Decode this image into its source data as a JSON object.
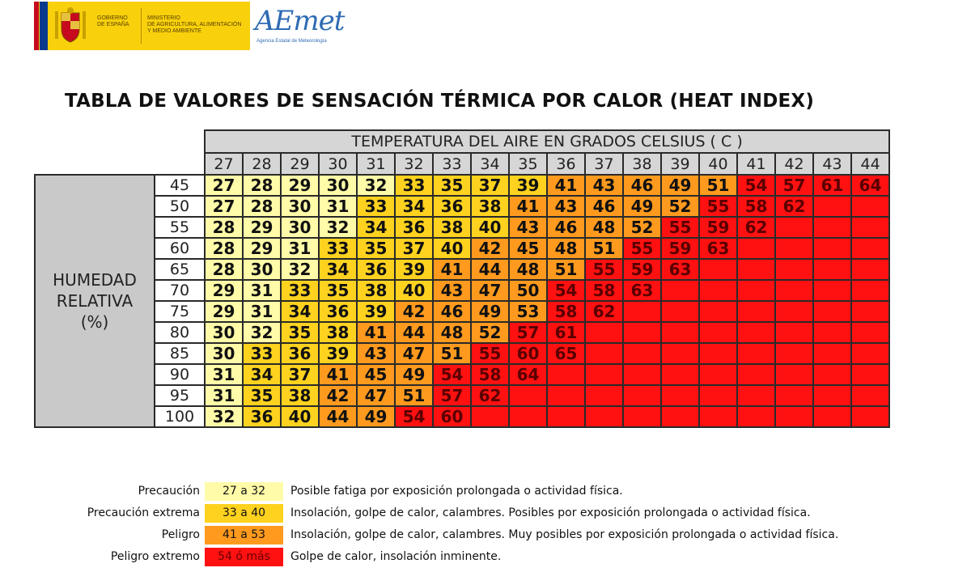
{
  "header": {
    "gov_line1": "GOBIERNO\nDE ESPAÑA",
    "gov_line2": "MINISTERIO\nDE AGRICULTURA, ALIMENTACIÓN\nY MEDIO AMBIENTE",
    "aemet_logo": "AEmet",
    "aemet_subtitle": "Agencia Estatal de Meteorología"
  },
  "title": "TABLA DE VALORES DE SENSACIÓN TÉRMICA POR CALOR (HEAT INDEX)",
  "table": {
    "temperature_title": "TEMPERATURA DEL AIRE EN GRADOS CELSIUS ( C )",
    "humidity_label": "HUMEDAD RELATIVA (%)",
    "temperatures": [
      "27",
      "28",
      "29",
      "30",
      "31",
      "32",
      "33",
      "34",
      "35",
      "36",
      "37",
      "38",
      "39",
      "40",
      "41",
      "42",
      "43",
      "44"
    ],
    "rows": [
      {
        "humidity": "45",
        "values": [
          "27",
          "28",
          "29",
          "30",
          "32",
          "33",
          "35",
          "37",
          "39",
          "41",
          "43",
          "46",
          "49",
          "51",
          "54",
          "57",
          "61",
          "64"
        ]
      },
      {
        "humidity": "50",
        "values": [
          "27",
          "28",
          "30",
          "31",
          "33",
          "34",
          "36",
          "38",
          "41",
          "43",
          "46",
          "49",
          "52",
          "55",
          "58",
          "62",
          "",
          ""
        ]
      },
      {
        "humidity": "55",
        "values": [
          "28",
          "29",
          "30",
          "32",
          "34",
          "36",
          "38",
          "40",
          "43",
          "46",
          "48",
          "52",
          "55",
          "59",
          "62",
          "",
          "",
          ""
        ]
      },
      {
        "humidity": "60",
        "values": [
          "28",
          "29",
          "31",
          "33",
          "35",
          "37",
          "40",
          "42",
          "45",
          "48",
          "51",
          "55",
          "59",
          "63",
          "",
          "",
          "",
          ""
        ]
      },
      {
        "humidity": "65",
        "values": [
          "28",
          "30",
          "32",
          "34",
          "36",
          "39",
          "41",
          "44",
          "48",
          "51",
          "55",
          "59",
          "63",
          "",
          "",
          "",
          "",
          ""
        ]
      },
      {
        "humidity": "70",
        "values": [
          "29",
          "31",
          "33",
          "35",
          "38",
          "40",
          "43",
          "47",
          "50",
          "54",
          "58",
          "63",
          "",
          "",
          "",
          "",
          "",
          ""
        ]
      },
      {
        "humidity": "75",
        "values": [
          "29",
          "31",
          "34",
          "36",
          "39",
          "42",
          "46",
          "49",
          "53",
          "58",
          "62",
          "",
          "",
          "",
          "",
          "",
          "",
          ""
        ]
      },
      {
        "humidity": "80",
        "values": [
          "30",
          "32",
          "35",
          "38",
          "41",
          "44",
          "48",
          "52",
          "57",
          "61",
          "",
          "",
          "",
          "",
          "",
          "",
          "",
          ""
        ]
      },
      {
        "humidity": "85",
        "values": [
          "30",
          "33",
          "36",
          "39",
          "43",
          "47",
          "51",
          "55",
          "60",
          "65",
          "",
          "",
          "",
          "",
          "",
          "",
          "",
          ""
        ]
      },
      {
        "humidity": "90",
        "values": [
          "31",
          "34",
          "37",
          "41",
          "45",
          "49",
          "54",
          "58",
          "64",
          "",
          "",
          "",
          "",
          "",
          "",
          "",
          "",
          ""
        ]
      },
      {
        "humidity": "95",
        "values": [
          "31",
          "35",
          "38",
          "42",
          "47",
          "51",
          "57",
          "62",
          "",
          "",
          "",
          "",
          "",
          "",
          "",
          "",
          "",
          ""
        ]
      },
      {
        "humidity": "100",
        "values": [
          "32",
          "36",
          "40",
          "44",
          "49",
          "54",
          "60",
          "",
          "",
          "",
          "",
          "",
          "",
          "",
          "",
          "",
          "",
          ""
        ]
      }
    ]
  },
  "colors": {
    "precaucion": "#fffba8",
    "precaucion_extrema": "#ffd21f",
    "peligro": "#ff9a1e",
    "peligro_extremo": "#ff1111"
  },
  "legend": [
    {
      "label": "Precaución",
      "range": "27 a 32",
      "description": "Posible fatiga por exposición prolongada o actividad física."
    },
    {
      "label": "Precaución extrema",
      "range": "33 a 40",
      "description": "Insolación, golpe de calor, calambres. Posibles por exposición prolongada o actividad física."
    },
    {
      "label": "Peligro",
      "range": "41 a 53",
      "description": "Insolación, golpe de calor, calambres. Muy posibles por exposición prolongada o actividad física."
    },
    {
      "label": "Peligro extremo",
      "range": "54 ó más",
      "description": "Golpe de calor, insolación inminente."
    }
  ]
}
